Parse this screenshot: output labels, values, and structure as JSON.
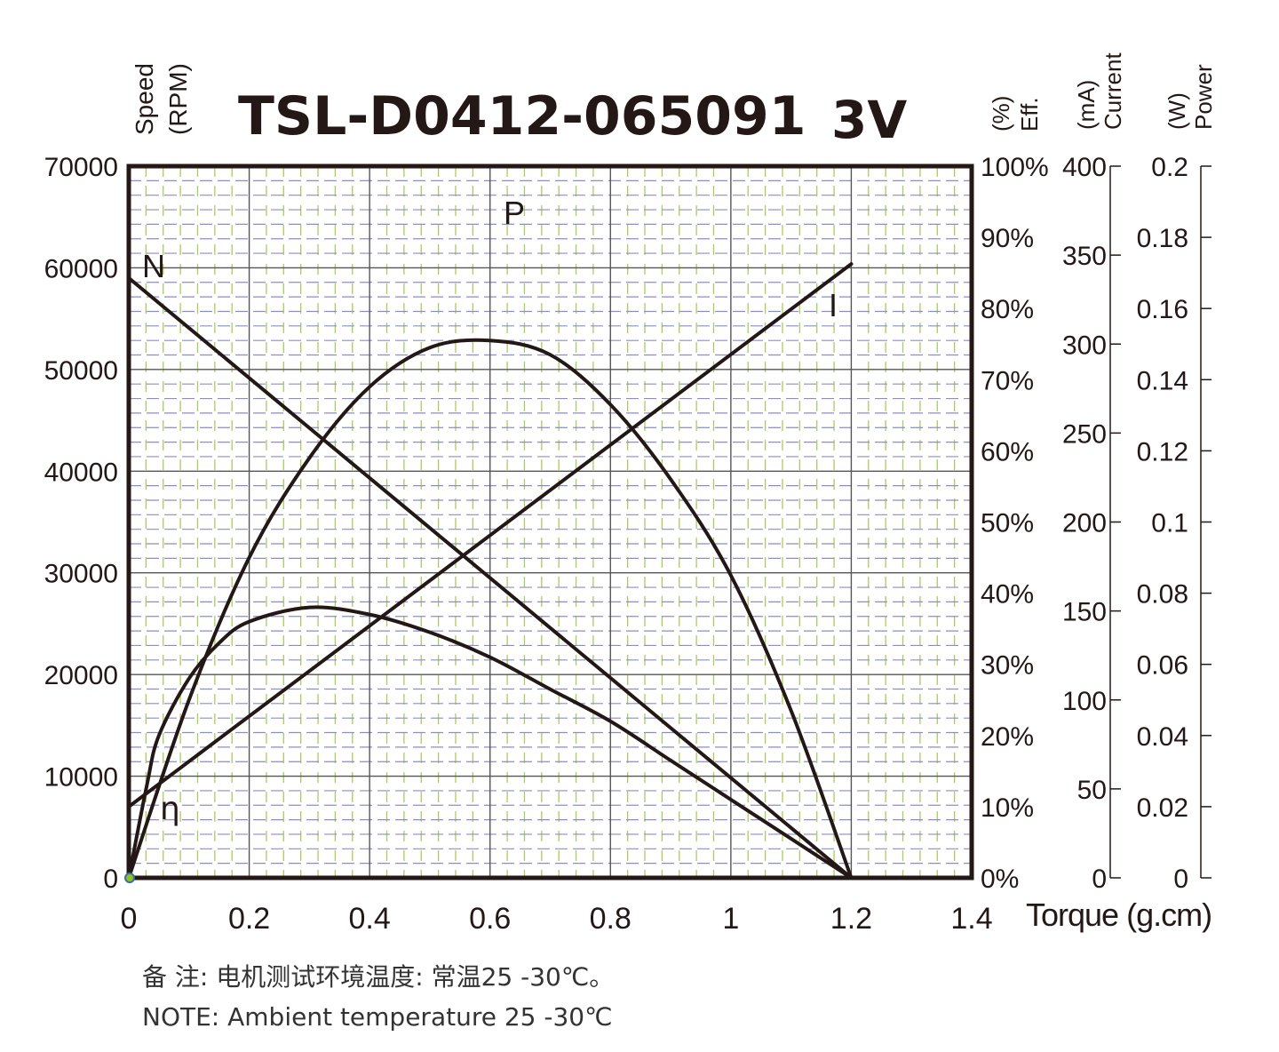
{
  "chart_data": {
    "type": "line",
    "title": "TSL-D0412-065091",
    "voltage_label": "3V",
    "x_axis": {
      "label": "Torque (g.cm)",
      "range": [
        0,
        1.4
      ],
      "ticks": [
        "0",
        "0.2",
        "0.4",
        "0.6",
        "0.8",
        "1",
        "1.2",
        "1.4"
      ]
    },
    "y_axes": {
      "speed": {
        "label_line1": "Speed",
        "label_line2": "(RPM)",
        "range": [
          0,
          70000
        ],
        "ticks": [
          "0",
          "10000",
          "20000",
          "30000",
          "40000",
          "50000",
          "60000",
          "70000"
        ]
      },
      "efficiency": {
        "label_line1": "Eff.",
        "label_line2": "(%)",
        "range": [
          0,
          100
        ],
        "ticks": [
          "0%",
          "10%",
          "20%",
          "30%",
          "40%",
          "50%",
          "60%",
          "70%",
          "80%",
          "90%",
          "100%"
        ]
      },
      "current": {
        "label_line1": "Current",
        "label_line2": "(mA)",
        "range": [
          0,
          400
        ],
        "ticks": [
          "0",
          "50",
          "100",
          "150",
          "200",
          "250",
          "300",
          "350",
          "400"
        ]
      },
      "power": {
        "label_line1": "Power",
        "label_line2": "(W)",
        "range": [
          0,
          0.2
        ],
        "ticks": [
          "0",
          "0.02",
          "0.04",
          "0.06",
          "0.08",
          "0.1",
          "0.12",
          "0.14",
          "0.16",
          "0.18",
          "0.2"
        ]
      }
    },
    "series": [
      {
        "name": "N",
        "axis": "speed",
        "x": [
          0,
          1.2
        ],
        "y": [
          59000,
          0
        ]
      },
      {
        "name": "I",
        "axis": "current",
        "x": [
          0,
          1.2
        ],
        "y": [
          40,
          345
        ]
      },
      {
        "name": "P",
        "axis": "power",
        "x": [
          0,
          0.1,
          0.2,
          0.3,
          0.4,
          0.5,
          0.6,
          0.7,
          0.8,
          0.9,
          1.0,
          1.1,
          1.2
        ],
        "y": [
          0,
          0.05,
          0.09,
          0.118,
          0.138,
          0.149,
          0.151,
          0.147,
          0.133,
          0.112,
          0.085,
          0.047,
          0
        ]
      },
      {
        "name": "η",
        "axis": "efficiency",
        "x": [
          0,
          0.03,
          0.05,
          0.1,
          0.15,
          0.2,
          0.3,
          0.4,
          0.5,
          0.6,
          0.7,
          0.8,
          0.9,
          1.0,
          1.1,
          1.2
        ],
        "y": [
          0,
          13,
          20,
          28,
          33,
          36,
          38,
          37,
          34.5,
          31,
          26.5,
          22,
          16.5,
          11,
          5.5,
          0
        ]
      }
    ],
    "curve_labels": {
      "N": "N",
      "I": "I",
      "P": "P",
      "eta": "η"
    },
    "grid": true
  },
  "notes": {
    "chinese": "备  注:  电机测试环境温度:  常温25 -30℃。",
    "english": "NOTE:   Ambient temperature 25 -30℃"
  }
}
